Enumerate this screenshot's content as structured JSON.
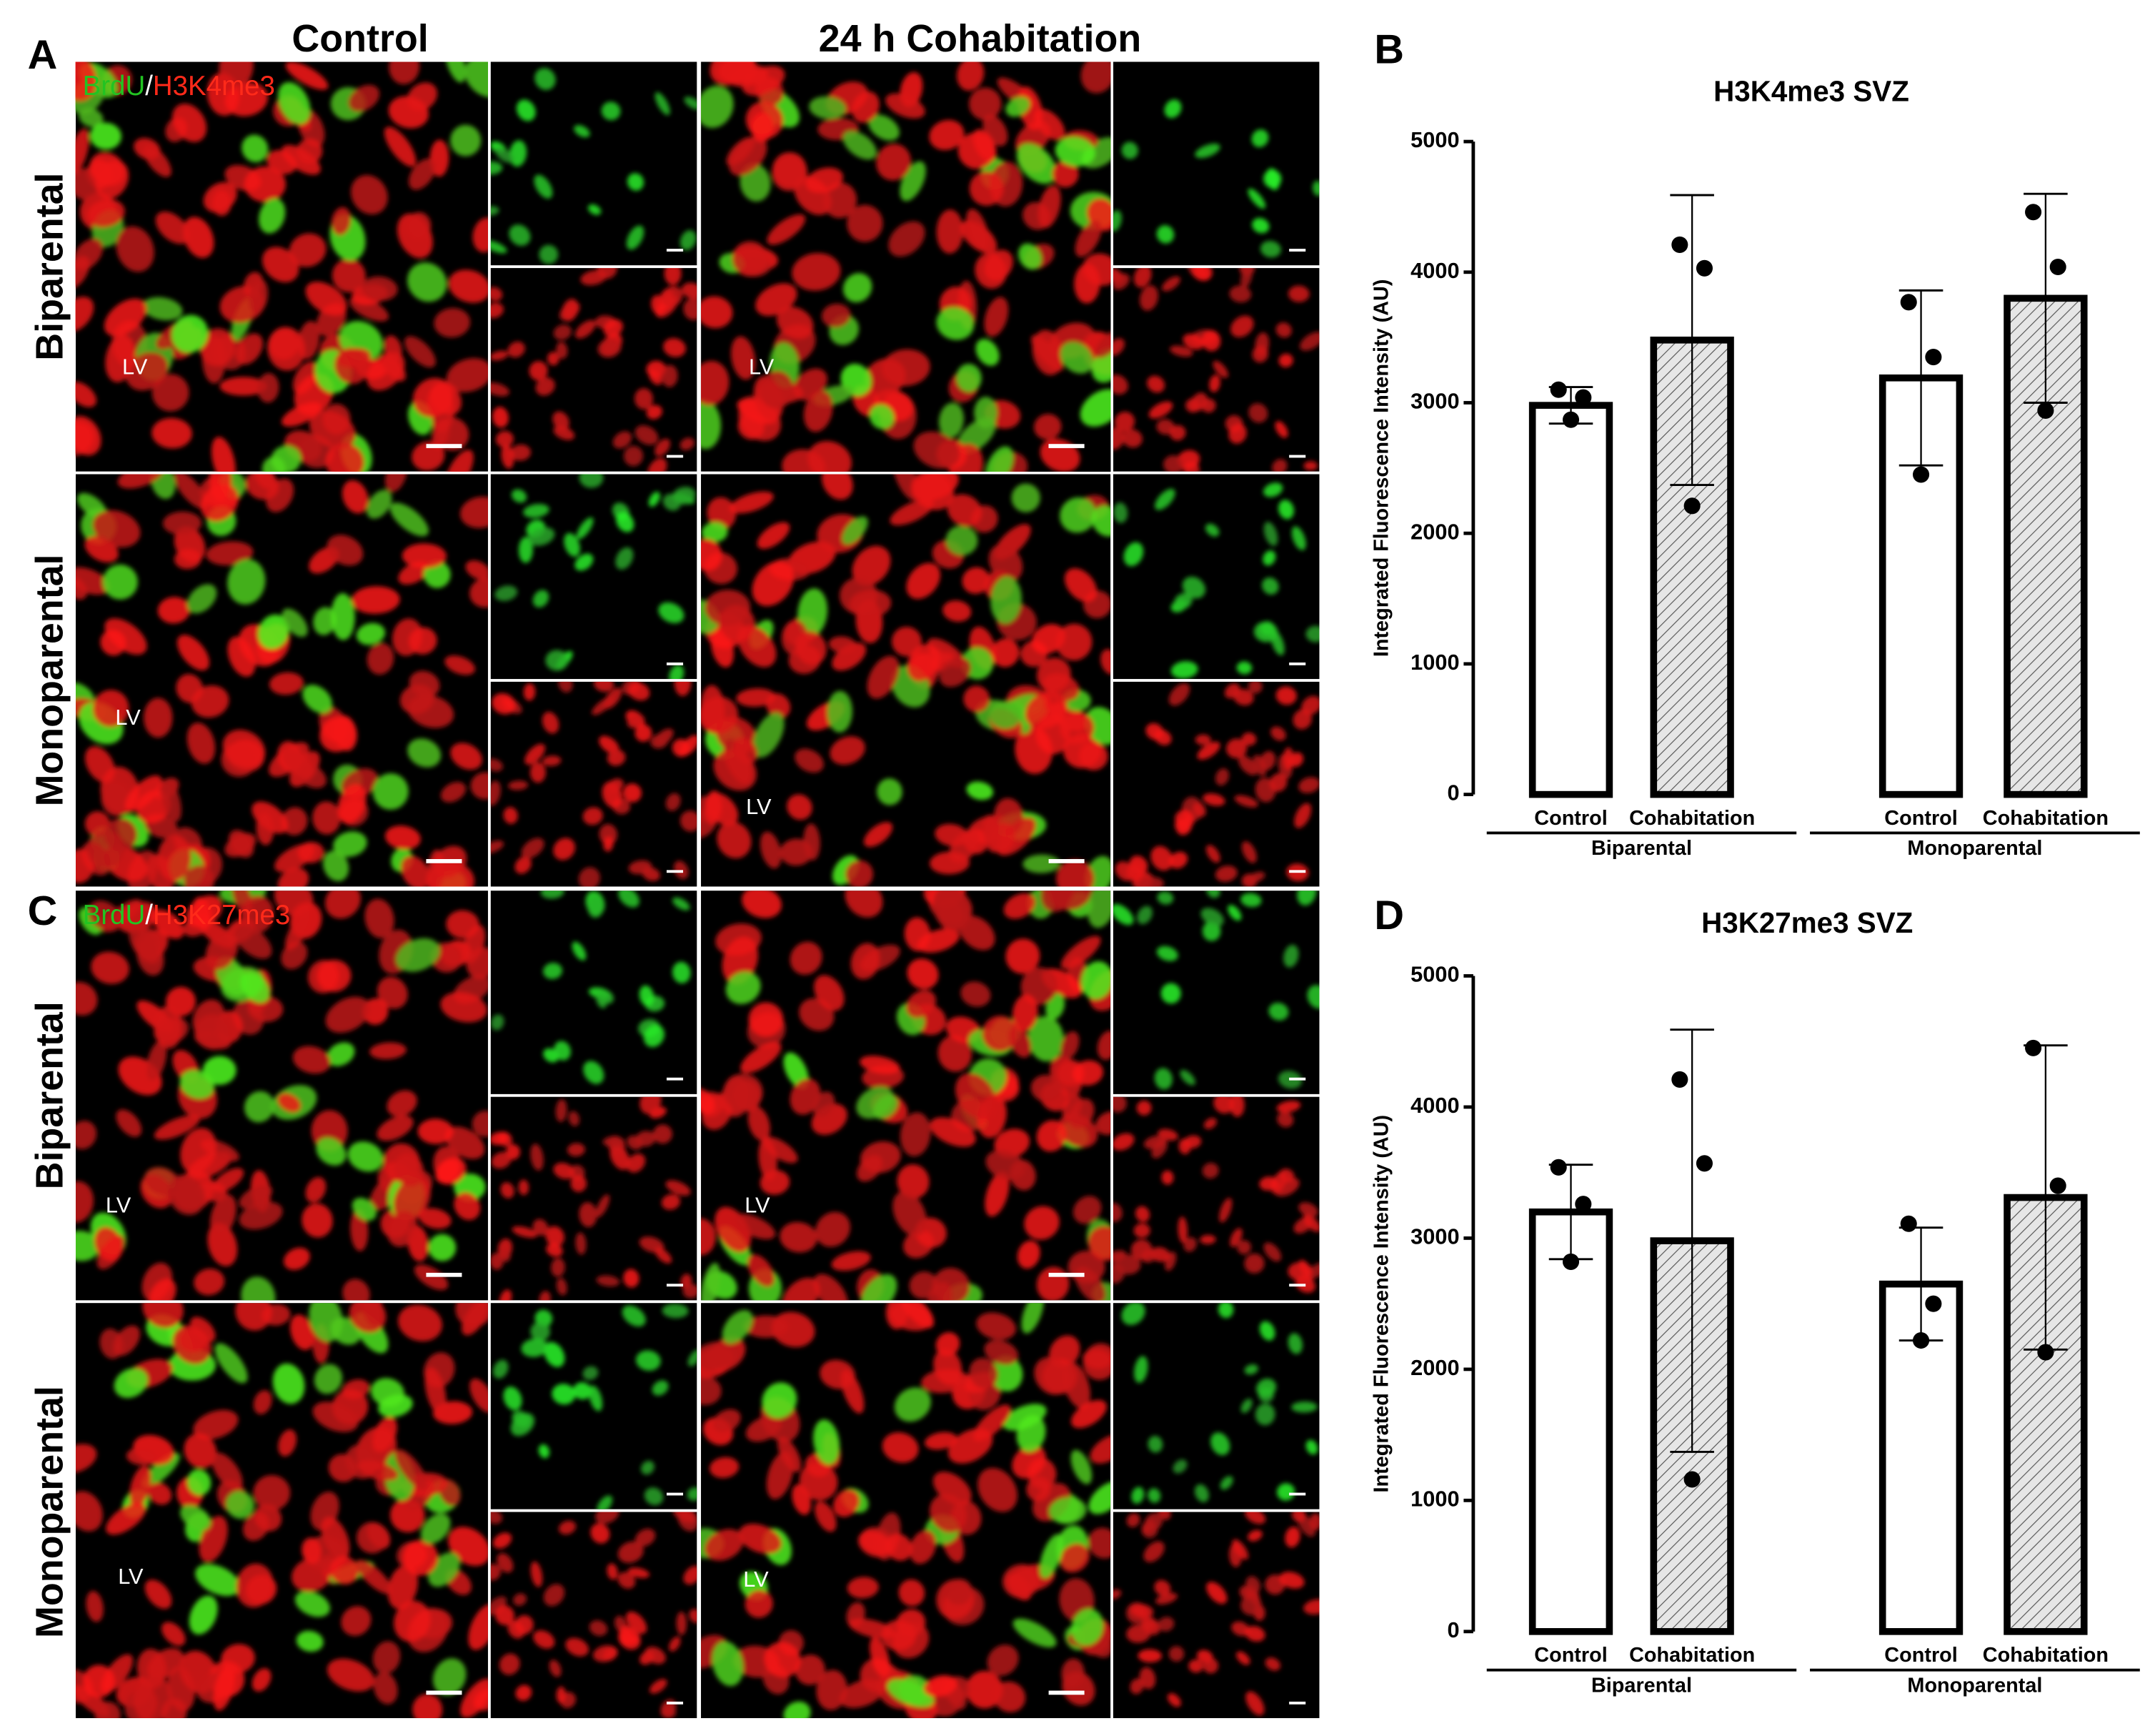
{
  "figure": {
    "panel_letters": [
      "A",
      "B",
      "C",
      "D"
    ],
    "column_headers": [
      "Control",
      "24 h Cohabitation"
    ],
    "row_labels": [
      "Biparental",
      "Monoparental",
      "Biparental",
      "Monoparental"
    ],
    "lv_label": "LV",
    "stain_labels": [
      {
        "green": "BrdU",
        "sep": "/",
        "red": "H3K4me3"
      },
      {
        "green": "BrdU",
        "sep": "/",
        "red": "H3K27me3"
      }
    ]
  },
  "chart_data": [
    {
      "type": "bar",
      "title": "H3K4me3 SVZ",
      "y_label": "Integrated Fluorescence Intensity (AU)",
      "categories": [
        "Control",
        "Cohabitation",
        "Control",
        "Cohabitation"
      ],
      "groups": [
        "Biparental",
        "Monoparental"
      ],
      "patterns": [
        "none",
        "hatch",
        "none",
        "hatch"
      ],
      "values": [
        2980,
        3480,
        3190,
        3800
      ],
      "errors": [
        140,
        1110,
        670,
        800
      ],
      "points": [
        [
          3100,
          3040,
          2870
        ],
        [
          4210,
          4030,
          2210
        ],
        [
          3770,
          3350,
          2450
        ],
        [
          4460,
          4040,
          2940
        ]
      ],
      "ylim": [
        0,
        5000
      ],
      "yticks": [
        0,
        1000,
        2000,
        3000,
        4000,
        5000
      ]
    },
    {
      "type": "bar",
      "title": "H3K27me3 SVZ",
      "y_label": "Integrated Fluorescence Intensity (AU)",
      "categories": [
        "Control",
        "Cohabitation",
        "Control",
        "Cohabitation"
      ],
      "groups": [
        "Biparental",
        "Monoparental"
      ],
      "patterns": [
        "none",
        "hatch",
        "none",
        "hatch"
      ],
      "values": [
        3200,
        2980,
        2650,
        3310
      ],
      "errors": [
        360,
        1610,
        430,
        1160
      ],
      "points": [
        [
          3540,
          3260,
          2820
        ],
        [
          4210,
          3570,
          1160
        ],
        [
          3110,
          2500,
          2220
        ],
        [
          4450,
          3400,
          2130
        ]
      ],
      "ylim": [
        0,
        5000
      ],
      "yticks": [
        0,
        1000,
        2000,
        3000,
        4000,
        5000
      ]
    }
  ]
}
